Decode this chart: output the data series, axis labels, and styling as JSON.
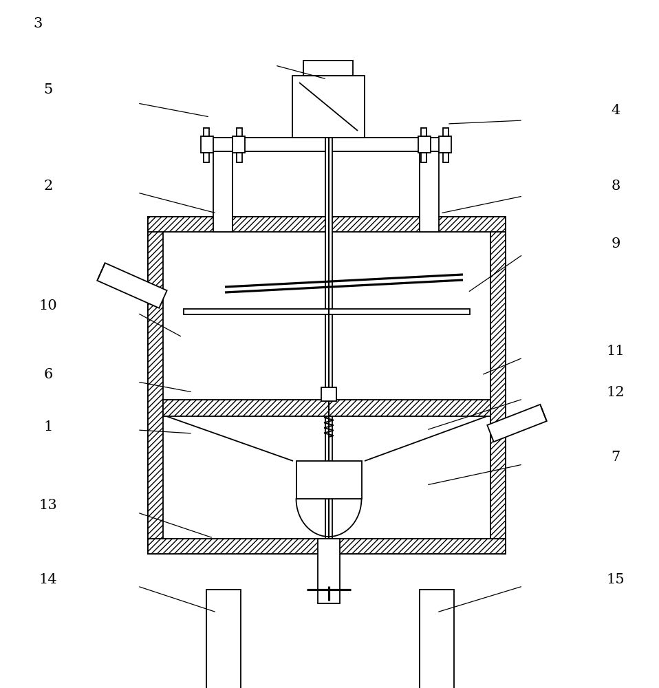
{
  "fig_width": 9.58,
  "fig_height": 10.0,
  "bg_color": "#ffffff",
  "line_color": "#000000",
  "lw": 1.3
}
